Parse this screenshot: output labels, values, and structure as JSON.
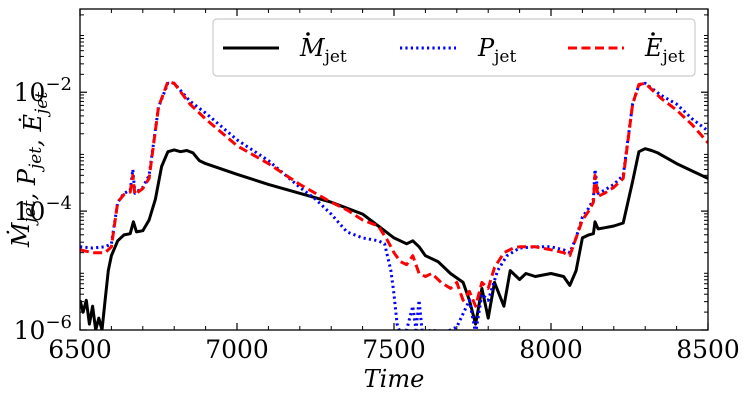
{
  "chart_data": {
    "type": "line",
    "title": "",
    "xlabel": "Time",
    "ylabel": {
      "parts": [
        {
          "t": "M",
          "dot": true,
          "sub": "jet"
        },
        {
          "t": ", "
        },
        {
          "t": "P",
          "sub": "jet"
        },
        {
          "t": ", "
        },
        {
          "t": "E",
          "dot": true,
          "sub": "jet"
        }
      ]
    },
    "xlim": [
      6500,
      8500
    ],
    "ylim_log10": [
      -6,
      -0.6
    ],
    "yscale": "log",
    "xticks": [
      6500,
      7000,
      7500,
      8000,
      8500
    ],
    "xtick_labels": [
      "6500",
      "7000",
      "7500",
      "8000",
      "8500"
    ],
    "yticks_log10": [
      -6,
      -4,
      -2
    ],
    "ytick_labels": [
      {
        "base": "10",
        "exp": "−6"
      },
      {
        "base": "10",
        "exp": "−4"
      },
      {
        "base": "10",
        "exp": "−2"
      }
    ],
    "legend": {
      "position": "top-right",
      "columns": 3
    },
    "series": [
      {
        "name": "Mdot_jet",
        "label": {
          "sym": "M",
          "dot": true,
          "sub": "jet"
        },
        "color": "#000000",
        "style": "solid",
        "points": [
          [
            6500,
            -5.5
          ],
          [
            6510,
            -5.7
          ],
          [
            6520,
            -5.5
          ],
          [
            6530,
            -5.9
          ],
          [
            6540,
            -5.6
          ],
          [
            6550,
            -6.0
          ],
          [
            6560,
            -5.8
          ],
          [
            6570,
            -6.0
          ],
          [
            6580,
            -5.5
          ],
          [
            6590,
            -5.0
          ],
          [
            6600,
            -4.75
          ],
          [
            6620,
            -4.5
          ],
          [
            6640,
            -4.4
          ],
          [
            6660,
            -4.38
          ],
          [
            6670,
            -4.18
          ],
          [
            6680,
            -4.35
          ],
          [
            6700,
            -4.33
          ],
          [
            6720,
            -4.15
          ],
          [
            6740,
            -3.8
          ],
          [
            6760,
            -3.25
          ],
          [
            6780,
            -3.0
          ],
          [
            6800,
            -2.97
          ],
          [
            6820,
            -3.0
          ],
          [
            6840,
            -2.98
          ],
          [
            6860,
            -3.02
          ],
          [
            6880,
            -3.15
          ],
          [
            6900,
            -3.2
          ],
          [
            7000,
            -3.38
          ],
          [
            7100,
            -3.55
          ],
          [
            7200,
            -3.7
          ],
          [
            7300,
            -3.85
          ],
          [
            7400,
            -4.05
          ],
          [
            7450,
            -4.25
          ],
          [
            7500,
            -4.45
          ],
          [
            7540,
            -4.55
          ],
          [
            7560,
            -4.5
          ],
          [
            7580,
            -4.6
          ],
          [
            7600,
            -4.75
          ],
          [
            7640,
            -4.85
          ],
          [
            7680,
            -5.05
          ],
          [
            7720,
            -5.2
          ],
          [
            7740,
            -5.5
          ],
          [
            7760,
            -5.9
          ],
          [
            7780,
            -5.3
          ],
          [
            7800,
            -5.8
          ],
          [
            7820,
            -5.2
          ],
          [
            7850,
            -5.6
          ],
          [
            7870,
            -5.0
          ],
          [
            7900,
            -5.15
          ],
          [
            7920,
            -5.05
          ],
          [
            7950,
            -5.1
          ],
          [
            8000,
            -5.05
          ],
          [
            8040,
            -5.1
          ],
          [
            8060,
            -5.25
          ],
          [
            8080,
            -5.0
          ],
          [
            8100,
            -4.45
          ],
          [
            8120,
            -4.4
          ],
          [
            8135,
            -4.38
          ],
          [
            8140,
            -4.18
          ],
          [
            8150,
            -4.3
          ],
          [
            8170,
            -4.28
          ],
          [
            8200,
            -4.25
          ],
          [
            8230,
            -4.2
          ],
          [
            8260,
            -3.5
          ],
          [
            8280,
            -3.0
          ],
          [
            8300,
            -2.95
          ],
          [
            8320,
            -2.98
          ],
          [
            8340,
            -3.02
          ],
          [
            8400,
            -3.2
          ],
          [
            8460,
            -3.35
          ],
          [
            8500,
            -3.45
          ]
        ]
      },
      {
        "name": "P_jet",
        "label": {
          "sym": "P",
          "dot": false,
          "sub": "jet"
        },
        "color": "#0000ff",
        "style": "dotted",
        "points": [
          [
            6500,
            -4.6
          ],
          [
            6540,
            -4.62
          ],
          [
            6580,
            -4.6
          ],
          [
            6600,
            -4.55
          ],
          [
            6620,
            -3.85
          ],
          [
            6640,
            -3.7
          ],
          [
            6660,
            -3.65
          ],
          [
            6668,
            -3.3
          ],
          [
            6675,
            -3.7
          ],
          [
            6700,
            -3.6
          ],
          [
            6720,
            -3.4
          ],
          [
            6750,
            -2.25
          ],
          [
            6780,
            -1.85
          ],
          [
            6800,
            -1.85
          ],
          [
            6850,
            -2.15
          ],
          [
            6900,
            -2.35
          ],
          [
            7000,
            -2.8
          ],
          [
            7100,
            -3.15
          ],
          [
            7200,
            -3.6
          ],
          [
            7250,
            -3.8
          ],
          [
            7300,
            -4.05
          ],
          [
            7350,
            -4.35
          ],
          [
            7400,
            -4.45
          ],
          [
            7450,
            -4.5
          ],
          [
            7470,
            -4.55
          ],
          [
            7490,
            -5.0
          ],
          [
            7500,
            -5.4
          ],
          [
            7510,
            -5.9
          ],
          [
            7520,
            -6.05
          ],
          [
            7540,
            -6.0
          ],
          [
            7560,
            -5.6
          ],
          [
            7570,
            -6.0
          ],
          [
            7580,
            -5.5
          ],
          [
            7590,
            -6.05
          ],
          [
            7620,
            -6.0
          ],
          [
            7660,
            -6.05
          ],
          [
            7700,
            -5.95
          ],
          [
            7740,
            -5.5
          ],
          [
            7760,
            -6.05
          ],
          [
            7780,
            -5.4
          ],
          [
            7800,
            -5.5
          ],
          [
            7830,
            -5.0
          ],
          [
            7860,
            -4.75
          ],
          [
            7900,
            -4.62
          ],
          [
            7950,
            -4.6
          ],
          [
            8000,
            -4.6
          ],
          [
            8040,
            -4.65
          ],
          [
            8060,
            -4.7
          ],
          [
            8080,
            -4.45
          ],
          [
            8100,
            -4.1
          ],
          [
            8120,
            -3.95
          ],
          [
            8135,
            -3.8
          ],
          [
            8140,
            -3.3
          ],
          [
            8150,
            -3.7
          ],
          [
            8170,
            -3.65
          ],
          [
            8200,
            -3.55
          ],
          [
            8230,
            -3.4
          ],
          [
            8260,
            -2.2
          ],
          [
            8280,
            -1.88
          ],
          [
            8300,
            -1.85
          ],
          [
            8350,
            -2.05
          ],
          [
            8400,
            -2.2
          ],
          [
            8450,
            -2.45
          ],
          [
            8500,
            -2.65
          ]
        ]
      },
      {
        "name": "Edot_jet",
        "label": {
          "sym": "E",
          "dot": true,
          "sub": "jet"
        },
        "color": "#ff0000",
        "style": "dashed",
        "points": [
          [
            6500,
            -4.65
          ],
          [
            6540,
            -4.7
          ],
          [
            6580,
            -4.7
          ],
          [
            6600,
            -4.6
          ],
          [
            6620,
            -3.85
          ],
          [
            6640,
            -3.72
          ],
          [
            6660,
            -3.68
          ],
          [
            6668,
            -3.4
          ],
          [
            6675,
            -3.72
          ],
          [
            6700,
            -3.62
          ],
          [
            6720,
            -3.45
          ],
          [
            6750,
            -2.25
          ],
          [
            6780,
            -1.82
          ],
          [
            6800,
            -1.85
          ],
          [
            6850,
            -2.2
          ],
          [
            6900,
            -2.45
          ],
          [
            7000,
            -2.9
          ],
          [
            7100,
            -3.2
          ],
          [
            7200,
            -3.55
          ],
          [
            7250,
            -3.7
          ],
          [
            7300,
            -3.85
          ],
          [
            7350,
            -3.98
          ],
          [
            7400,
            -4.15
          ],
          [
            7450,
            -4.25
          ],
          [
            7480,
            -4.5
          ],
          [
            7500,
            -4.7
          ],
          [
            7520,
            -4.85
          ],
          [
            7540,
            -4.9
          ],
          [
            7560,
            -4.75
          ],
          [
            7580,
            -5.05
          ],
          [
            7600,
            -5.1
          ],
          [
            7620,
            -5.05
          ],
          [
            7650,
            -5.2
          ],
          [
            7680,
            -5.3
          ],
          [
            7700,
            -5.2
          ],
          [
            7720,
            -5.5
          ],
          [
            7740,
            -5.35
          ],
          [
            7760,
            -5.6
          ],
          [
            7780,
            -5.2
          ],
          [
            7800,
            -5.3
          ],
          [
            7820,
            -4.95
          ],
          [
            7850,
            -4.7
          ],
          [
            7880,
            -4.62
          ],
          [
            7900,
            -4.6
          ],
          [
            7950,
            -4.6
          ],
          [
            8000,
            -4.65
          ],
          [
            8040,
            -4.7
          ],
          [
            8060,
            -4.75
          ],
          [
            8080,
            -4.45
          ],
          [
            8100,
            -4.15
          ],
          [
            8120,
            -4.0
          ],
          [
            8135,
            -3.85
          ],
          [
            8140,
            -3.4
          ],
          [
            8150,
            -3.75
          ],
          [
            8170,
            -3.7
          ],
          [
            8200,
            -3.6
          ],
          [
            8230,
            -3.45
          ],
          [
            8260,
            -2.2
          ],
          [
            8280,
            -1.87
          ],
          [
            8300,
            -1.85
          ],
          [
            8350,
            -2.1
          ],
          [
            8400,
            -2.3
          ],
          [
            8450,
            -2.55
          ],
          [
            8500,
            -2.85
          ]
        ]
      }
    ]
  }
}
